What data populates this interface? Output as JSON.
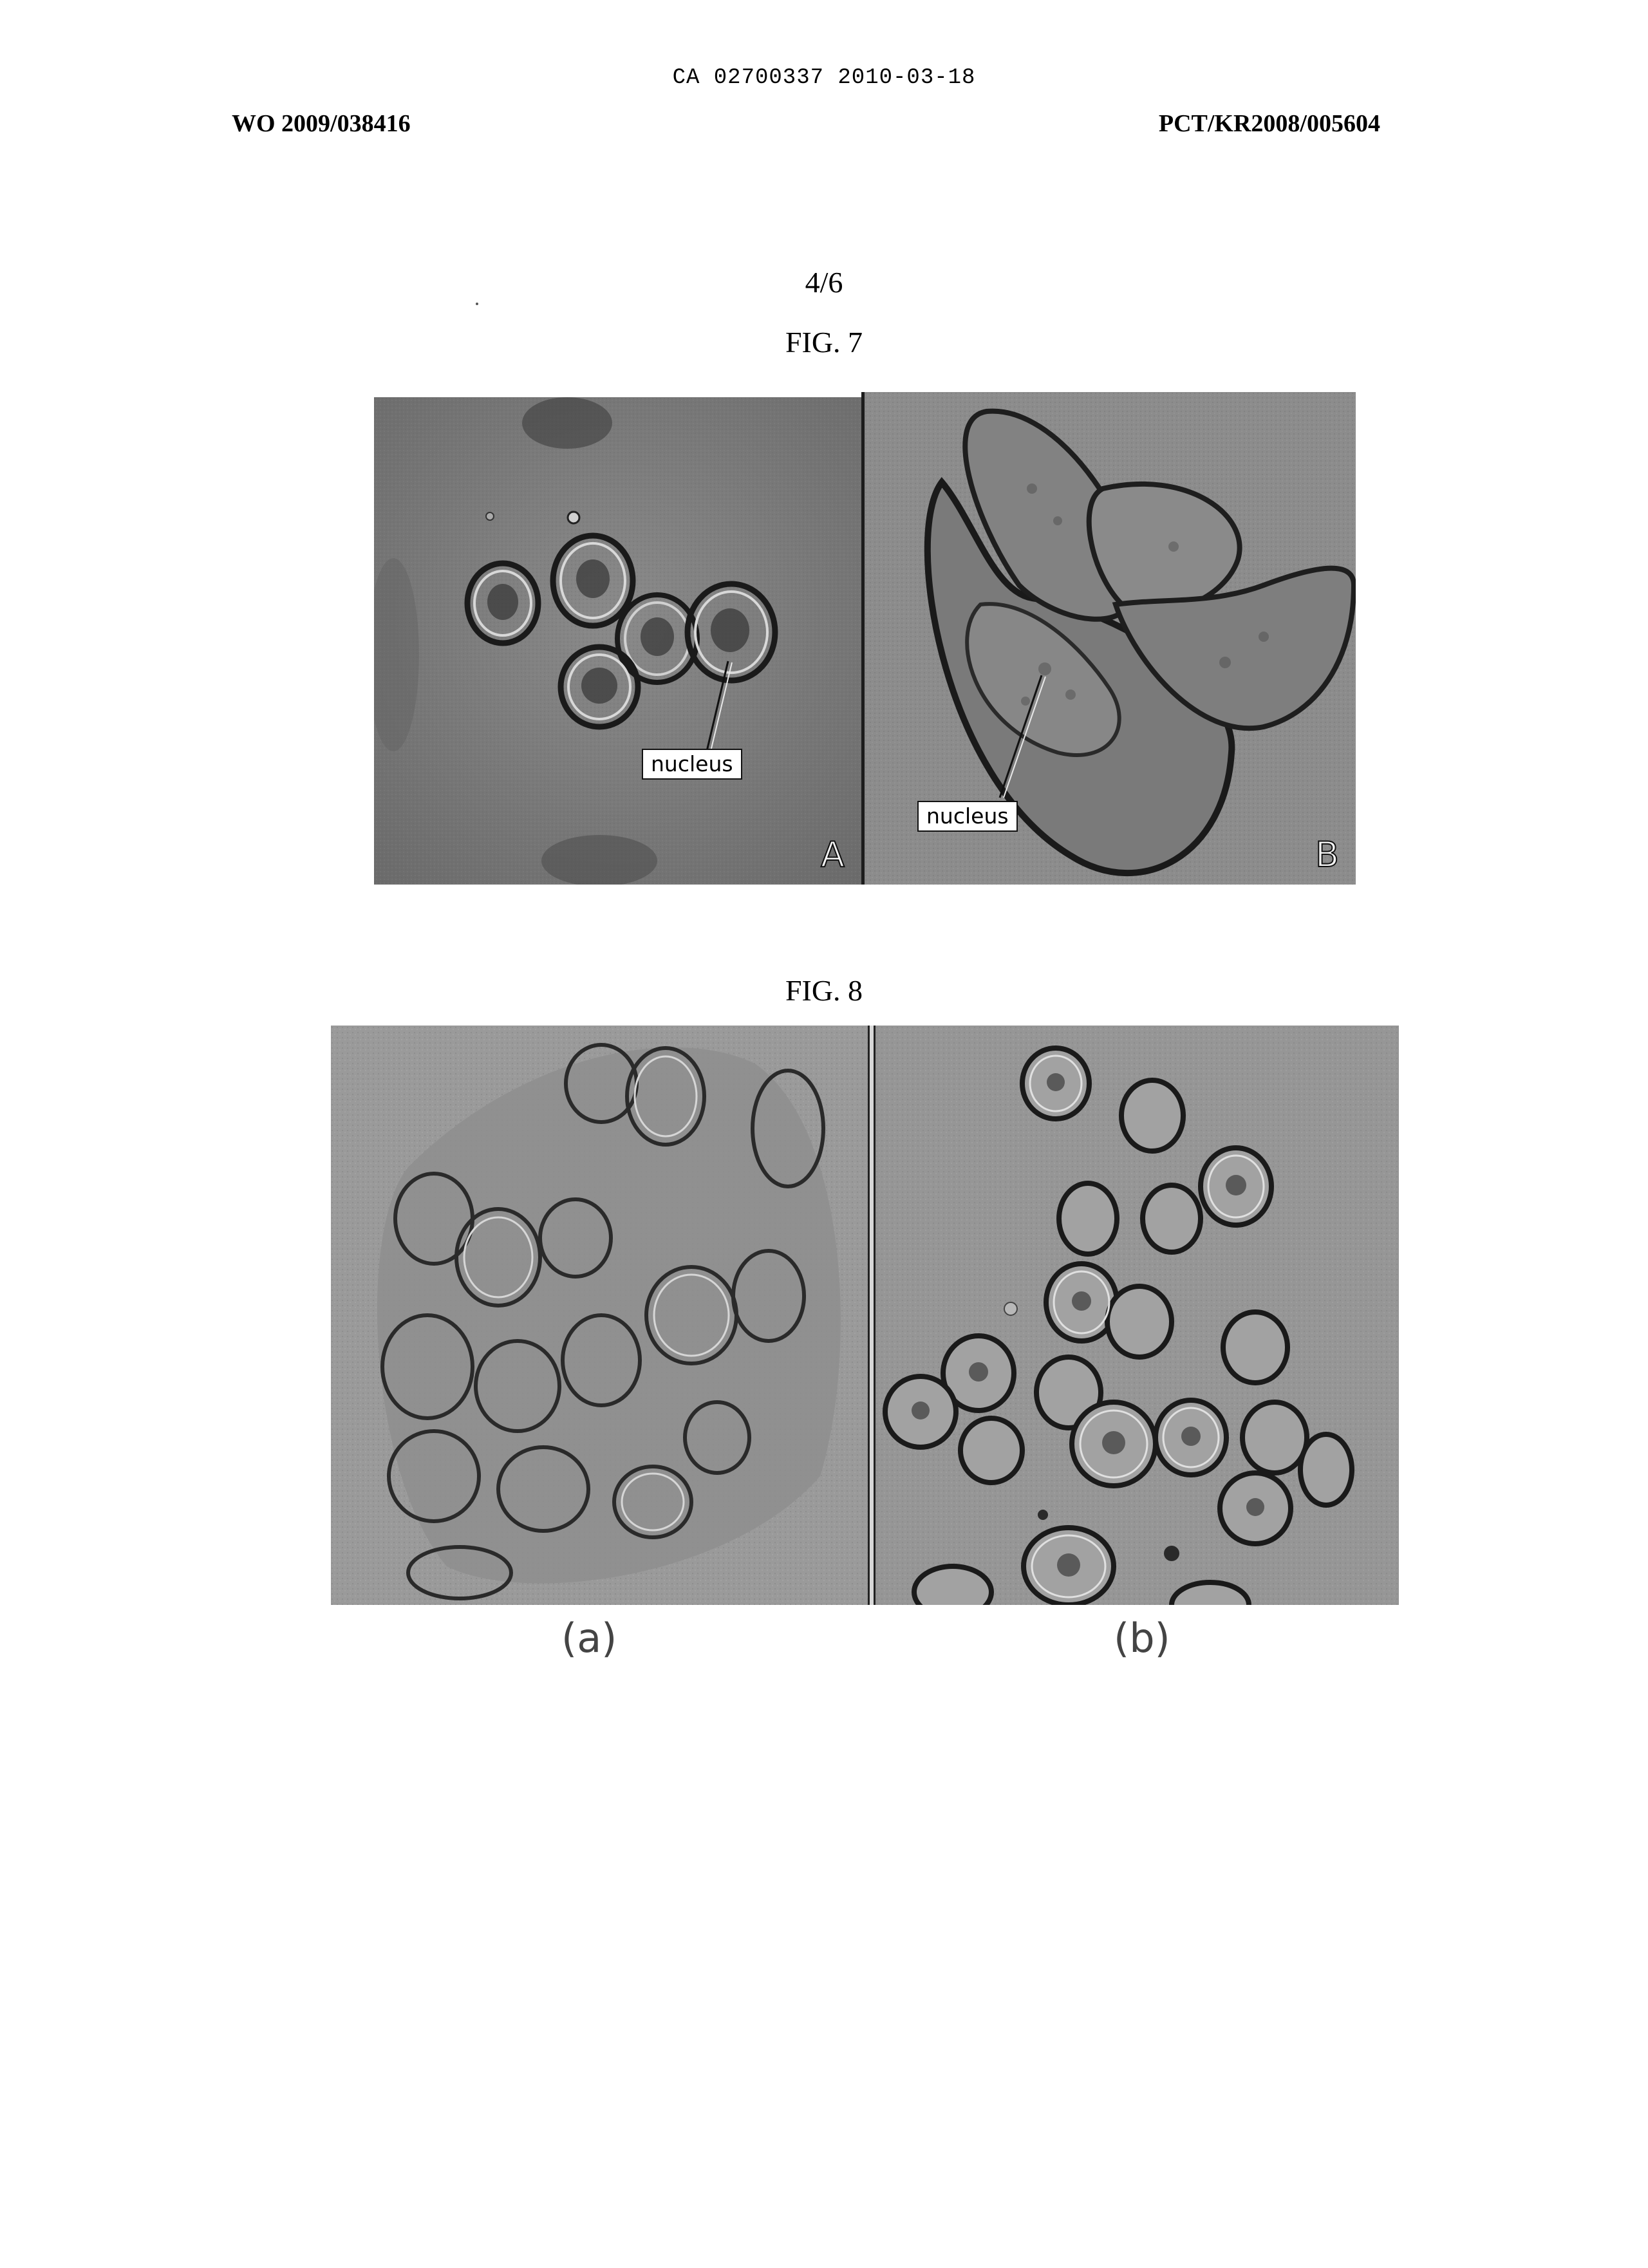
{
  "header": {
    "doc_code": "CA 02700337 2010-03-18",
    "publication_left": "WO 2009/038416",
    "publication_right": "PCT/KR2008/005604"
  },
  "sheet_number": "4/6",
  "figure7": {
    "title": "FIG. 7",
    "panel_a": {
      "letter": "A",
      "nucleus_label": "nucleus"
    },
    "panel_b": {
      "letter": "B",
      "nucleus_label": "nucleus"
    }
  },
  "figure8": {
    "title": "FIG. 8",
    "panel_a_label": "(a)",
    "panel_b_label": "(b)"
  }
}
